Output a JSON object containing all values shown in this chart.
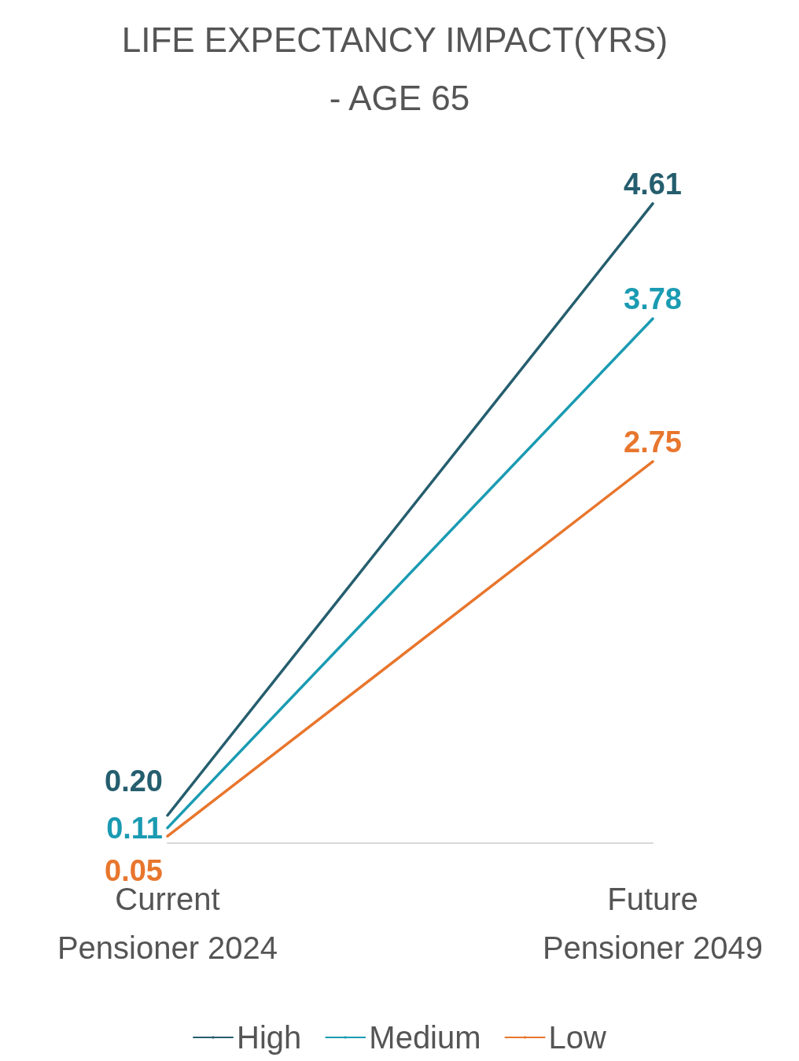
{
  "chart_data": {
    "type": "line",
    "title": "LIFE EXPECTANCY IMPACT(YRS) - AGE 65",
    "categories": [
      "Current Pensioner 2024",
      "Future Pensioner 2049"
    ],
    "series": [
      {
        "name": "High",
        "color": "#255e6e",
        "values": [
          0.2,
          4.61
        ],
        "value_labels": [
          "0.20",
          "4.61"
        ]
      },
      {
        "name": "Medium",
        "color": "#1a9bb2",
        "values": [
          0.11,
          3.78
        ],
        "value_labels": [
          "0.11",
          "3.78"
        ]
      },
      {
        "name": "Low",
        "color": "#e8762d",
        "values": [
          0.05,
          2.75
        ],
        "value_labels": [
          "0.05",
          "2.75"
        ]
      }
    ],
    "legend": "bottom",
    "grid": false,
    "marker": "none",
    "line_style": "solid"
  }
}
